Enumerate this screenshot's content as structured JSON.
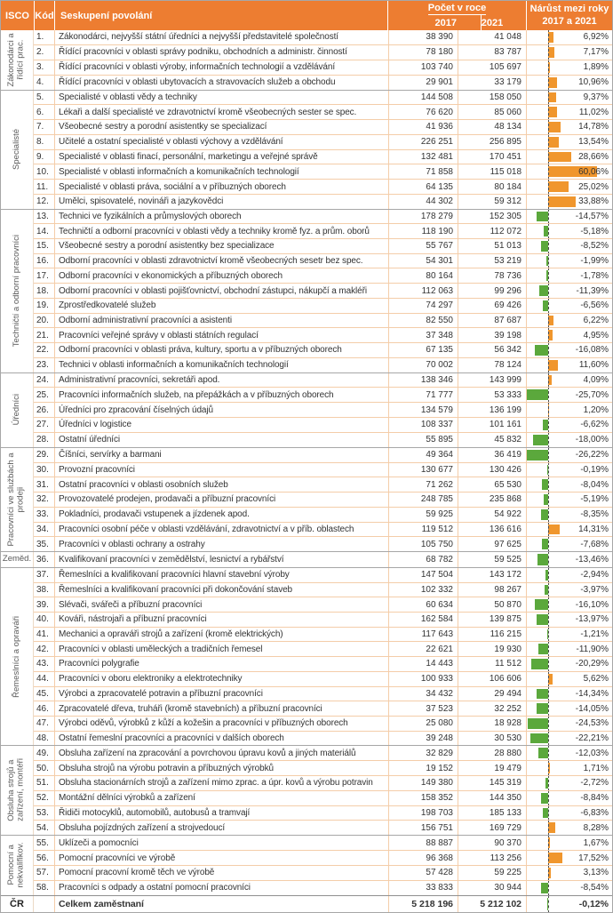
{
  "header": {
    "isco": "ISCO",
    "code": "Kód",
    "occupation": "Seskupení povolání",
    "count_group": "Počet v roce",
    "year_2017": "2017",
    "year_2021": "2021",
    "change_line1": "Nárůst mezi roky",
    "change_line2": "2017 a 2021"
  },
  "colors": {
    "header_bg": "#ED7D31",
    "header_text": "#FFFFFF",
    "positive_bar": "#F0962D",
    "negative_bar": "#5BA83C",
    "row_line": "#F4CDA9",
    "group_line": "#A7A7A7",
    "group_label_text": "#595959"
  },
  "chart_data": {
    "type": "table",
    "columns": [
      "ISCO",
      "Kód",
      "Seskupení povolání",
      "Počet v roce 2017",
      "Počet v roce 2021",
      "Nárůst mezi roky 2017 a 2021"
    ],
    "axis": {
      "min": -26.22,
      "max": 60.06,
      "zero_line": "dashed"
    },
    "bar_style": {
      "positive_color": "#F0962D",
      "negative_color": "#5BA83C"
    },
    "groups": [
      {
        "label": "Zákonodárci a řídící prac.",
        "rotated": true,
        "rows": [
          {
            "code": "1.",
            "name": "Zákonodárci, nejvyšší státní úředníci a nejvyšší představitelé společností",
            "v2017": "38 390",
            "v2021": "41 048",
            "change_pct": 6.92
          },
          {
            "code": "2.",
            "name": "Řídící pracovníci v oblasti správy podniku, obchodních a administr. činností",
            "v2017": "78 180",
            "v2021": "83 787",
            "change_pct": 7.17
          },
          {
            "code": "3.",
            "name": "Řídící pracovníci v oblasti výroby, informačních technologií a vzdělávání",
            "v2017": "103 740",
            "v2021": "105 697",
            "change_pct": 1.89
          },
          {
            "code": "4.",
            "name": "Řídící pracovníci v oblasti ubytovacích a stravovacích služeb a obchodu",
            "v2017": "29 901",
            "v2021": "33 179",
            "change_pct": 10.96
          }
        ]
      },
      {
        "label": "Specialisté",
        "rotated": true,
        "rows": [
          {
            "code": "5.",
            "name": "Specialisté v oblasti vědy a techniky",
            "v2017": "144 508",
            "v2021": "158 050",
            "change_pct": 9.37
          },
          {
            "code": "6.",
            "name": "Lékaři a další specialisté ve zdravotnictví kromě všeobecných sester se spec.",
            "v2017": "76 620",
            "v2021": "85 060",
            "change_pct": 11.02
          },
          {
            "code": "7.",
            "name": "Všeobecné sestry a porodní asistentky se specializací",
            "v2017": "41 936",
            "v2021": "48 134",
            "change_pct": 14.78
          },
          {
            "code": "8.",
            "name": "Učitelé a ostatní specialisté v oblasti výchovy a vzdělávání",
            "v2017": "226 251",
            "v2021": "256 895",
            "change_pct": 13.54
          },
          {
            "code": "9.",
            "name": "Specialisté v oblasti finací, personální, marketingu a veřejné správě",
            "v2017": "132 481",
            "v2021": "170 451",
            "change_pct": 28.66
          },
          {
            "code": "10.",
            "name": "Specialisté v oblasti informačních a komunikačních technologií",
            "v2017": "71 858",
            "v2021": "115 018",
            "change_pct": 60.06
          },
          {
            "code": "11.",
            "name": "Specialisté v oblasti práva, sociální a v příbuzných oborech",
            "v2017": "64 135",
            "v2021": "80 184",
            "change_pct": 25.02
          },
          {
            "code": "12.",
            "name": "Umělci, spisovatelé, novináři a jazykovědci",
            "v2017": "44 302",
            "v2021": "59 312",
            "change_pct": 33.88
          }
        ]
      },
      {
        "label": "Techničtí a odborní pracovníci",
        "rotated": true,
        "rows": [
          {
            "code": "13.",
            "name": "Technici ve fyzikálních a průmyslových oborech",
            "v2017": "178 279",
            "v2021": "152 305",
            "change_pct": -14.57
          },
          {
            "code": "14.",
            "name": "Techničtí a odborní pracovníci v oblasti vědy a techniky kromě fyz. a prům. oborů",
            "v2017": "118 190",
            "v2021": "112 072",
            "change_pct": -5.18
          },
          {
            "code": "15.",
            "name": "Všeobecné sestry a porodní asistentky bez specializace",
            "v2017": "55 767",
            "v2021": "51 013",
            "change_pct": -8.52
          },
          {
            "code": "16.",
            "name": "Odborní pracovníci v oblasti zdravotnictví kromě všeobecných sesetr bez spec.",
            "v2017": "54 301",
            "v2021": "53 219",
            "change_pct": -1.99
          },
          {
            "code": "17.",
            "name": "Odborní pracovníci v ekonomických a příbuzných oborech",
            "v2017": "80 164",
            "v2021": "78 736",
            "change_pct": -1.78
          },
          {
            "code": "18.",
            "name": "Odborní pracovníci v oblasti pojišťovnictví, obchodní zástupci, nákupčí a makléři",
            "v2017": "112 063",
            "v2021": "99 296",
            "change_pct": -11.39
          },
          {
            "code": "19.",
            "name": "Zprostředkovatelé služeb",
            "v2017": "74 297",
            "v2021": "69 426",
            "change_pct": -6.56
          },
          {
            "code": "20.",
            "name": "Odborní administrativní pracovníci a asistenti",
            "v2017": "82 550",
            "v2021": "87 687",
            "change_pct": 6.22
          },
          {
            "code": "21.",
            "name": "Pracovníci veřejné správy v oblasti státních regulací",
            "v2017": "37 348",
            "v2021": "39 198",
            "change_pct": 4.95
          },
          {
            "code": "22.",
            "name": "Odborní pracovníci v oblasti práva, kultury, sportu a v příbuzných oborech",
            "v2017": "67 135",
            "v2021": "56 342",
            "change_pct": -16.08
          },
          {
            "code": "23.",
            "name": "Technici v oblasti informačních a komunikačních technologií",
            "v2017": "70 002",
            "v2021": "78 124",
            "change_pct": 11.6
          }
        ]
      },
      {
        "label": "Úředníci",
        "rotated": true,
        "rows": [
          {
            "code": "24.",
            "name": "Administrativní pracovníci, sekretáři apod.",
            "v2017": "138 346",
            "v2021": "143 999",
            "change_pct": 4.09
          },
          {
            "code": "25.",
            "name": "Pracovníci informačních služeb, na přepážkách a v příbuzných oborech",
            "v2017": "71 777",
            "v2021": "53 333",
            "change_pct": -25.7
          },
          {
            "code": "26.",
            "name": "Úředníci pro zpracování číselných údajů",
            "v2017": "134 579",
            "v2021": "136 199",
            "change_pct": 1.2
          },
          {
            "code": "27.",
            "name": "Úředníci v logistice",
            "v2017": "108 337",
            "v2021": "101 161",
            "change_pct": -6.62
          },
          {
            "code": "28.",
            "name": "Ostatní úředníci",
            "v2017": "55 895",
            "v2021": "45 832",
            "change_pct": -18.0
          }
        ]
      },
      {
        "label": "Pracovníci ve službách a prodeji",
        "rotated": true,
        "rows": [
          {
            "code": "29.",
            "name": "Číšníci, servírky a barmani",
            "v2017": "49 364",
            "v2021": "36 419",
            "change_pct": -26.22
          },
          {
            "code": "30.",
            "name": "Provozní pracovníci",
            "v2017": "130 677",
            "v2021": "130 426",
            "change_pct": -0.19
          },
          {
            "code": "31.",
            "name": "Ostatní pracovníci v oblasti osobních služeb",
            "v2017": "71 262",
            "v2021": "65 530",
            "change_pct": -8.04
          },
          {
            "code": "32.",
            "name": "Provozovatelé prodejen, prodavači a příbuzní pracovníci",
            "v2017": "248 785",
            "v2021": "235 868",
            "change_pct": -5.19
          },
          {
            "code": "33.",
            "name": "Pokladníci, prodavači vstupenek a jízdenek apod.",
            "v2017": "59 925",
            "v2021": "54 922",
            "change_pct": -8.35
          },
          {
            "code": "34.",
            "name": "Pracovníci osobní péče v oblasti vzdělávání, zdravotnictví a v příb. oblastech",
            "v2017": "119 512",
            "v2021": "136 616",
            "change_pct": 14.31
          },
          {
            "code": "35.",
            "name": "Pracovníci v oblasti ochrany a ostrahy",
            "v2017": "105 750",
            "v2021": "97 625",
            "change_pct": -7.68
          }
        ]
      },
      {
        "label": "Zeměd.",
        "rotated": false,
        "rows": [
          {
            "code": "36.",
            "name": "Kvalifikovaní pracovníci v zemědělství, lesnictví a rybářství",
            "v2017": "68 782",
            "v2021": "59 525",
            "change_pct": -13.46
          }
        ]
      },
      {
        "label": "Řemeslníci a opraváři",
        "rotated": true,
        "rows": [
          {
            "code": "37.",
            "name": "Řemeslníci a kvalifikovaní pracovníci hlavní stavební výroby",
            "v2017": "147 504",
            "v2021": "143 172",
            "change_pct": -2.94
          },
          {
            "code": "38.",
            "name": "Řemeslníci a kvalifikovaní pracovníci při dokončování staveb",
            "v2017": "102 332",
            "v2021": "98 267",
            "change_pct": -3.97
          },
          {
            "code": "39.",
            "name": "Slévači, svářeči a příbuzní pracovníci",
            "v2017": "60 634",
            "v2021": "50 870",
            "change_pct": -16.1
          },
          {
            "code": "40.",
            "name": "Kováři, nástrojaři a příbuzní pracovníci",
            "v2017": "162 584",
            "v2021": "139 875",
            "change_pct": -13.97
          },
          {
            "code": "41.",
            "name": "Mechanici a opraváři strojů a zařízení (kromě elektrických)",
            "v2017": "117 643",
            "v2021": "116 215",
            "change_pct": -1.21
          },
          {
            "code": "42.",
            "name": "Pracovníci v oblasti uměleckých a tradičních řemesel",
            "v2017": "22 621",
            "v2021": "19 930",
            "change_pct": -11.9
          },
          {
            "code": "43.",
            "name": "Pracovníci polygrafie",
            "v2017": "14 443",
            "v2021": "11 512",
            "change_pct": -20.29
          },
          {
            "code": "44.",
            "name": "Pracovníci v oboru elektroniky a elektrotechniky",
            "v2017": "100 933",
            "v2021": "106 606",
            "change_pct": 5.62
          },
          {
            "code": "45.",
            "name": "Výrobci a zpracovatelé potravin a příbuzní pracovníci",
            "v2017": "34 432",
            "v2021": "29 494",
            "change_pct": -14.34
          },
          {
            "code": "46.",
            "name": "Zpracovatelé dřeva, truháři (kromě stavebních) a příbuzní pracovníci",
            "v2017": "37 523",
            "v2021": "32 252",
            "change_pct": -14.05
          },
          {
            "code": "47.",
            "name": "Výrobci oděvů, výrobků z kůží a kožešin a pracovníci v příbuzných oborech",
            "v2017": "25 080",
            "v2021": "18 928",
            "change_pct": -24.53
          },
          {
            "code": "48.",
            "name": "Ostatní řemeslní pracovníci a pracovníci v dalších oborech",
            "v2017": "39 248",
            "v2021": "30 530",
            "change_pct": -22.21
          }
        ]
      },
      {
        "label": "Obsluha strojů a zařízení, montéři",
        "rotated": true,
        "rows": [
          {
            "code": "49.",
            "name": "Obsluha zařízení na zpracování a povrchovou úpravu kovů a jiných materiálů",
            "v2017": "32 829",
            "v2021": "28 880",
            "change_pct": -12.03
          },
          {
            "code": "50.",
            "name": "Obsluha strojů na výrobu potravin a příbuzných výrobků",
            "v2017": "19 152",
            "v2021": "19 479",
            "change_pct": 1.71
          },
          {
            "code": "51.",
            "name": "Obsluha stacionárních strojů a zařízení mimo zprac. a úpr. kovů a výrobu potravin",
            "v2017": "149 380",
            "v2021": "145 319",
            "change_pct": -2.72
          },
          {
            "code": "52.",
            "name": "Montážní dělníci výrobků a zařízení",
            "v2017": "158 352",
            "v2021": "144 350",
            "change_pct": -8.84
          },
          {
            "code": "53.",
            "name": "Řidiči motocyklů, automobilů, autobusů a tramvají",
            "v2017": "198 703",
            "v2021": "185 133",
            "change_pct": -6.83
          },
          {
            "code": "54.",
            "name": "Obsluha pojízdných zařízení a strojvedoucí",
            "v2017": "156 751",
            "v2021": "169 729",
            "change_pct": 8.28
          }
        ]
      },
      {
        "label": "Pomocní a nekvalifikov.",
        "rotated": true,
        "rows": [
          {
            "code": "55.",
            "name": "Uklízeči a pomocníci",
            "v2017": "88 887",
            "v2021": "90 370",
            "change_pct": 1.67
          },
          {
            "code": "56.",
            "name": "Pomocní pracovníci ve výrobě",
            "v2017": "96 368",
            "v2021": "113 256",
            "change_pct": 17.52
          },
          {
            "code": "57.",
            "name": "Pomocní pracovní kromě těch ve výrobě",
            "v2017": "57 428",
            "v2021": "59 225",
            "change_pct": 3.13
          },
          {
            "code": "58.",
            "name": "Pracovníci s odpady a ostatní pomocní pracovníci",
            "v2017": "33 833",
            "v2021": "30 944",
            "change_pct": -8.54
          }
        ]
      }
    ],
    "total": {
      "isco": "ČR",
      "label": "Celkem zaměstnaní",
      "v2017": "5 218 196",
      "v2021": "5 212 102",
      "change_pct": -0.12
    }
  }
}
